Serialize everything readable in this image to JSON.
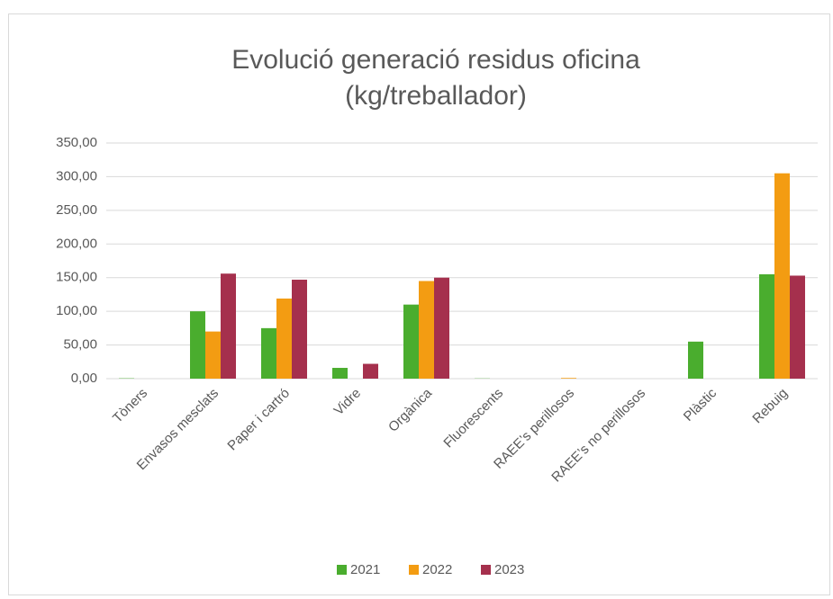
{
  "chart_data": {
    "type": "bar",
    "title": [
      "Evolució generació residus oficina",
      "(kg/treballador)"
    ],
    "categories": [
      "Tòners",
      "Envasos mesclats",
      "Paper i cartró",
      "Vidre",
      "Orgànica",
      "Fluorescents",
      "RAEE’s perillosos",
      "RAEE’s no perillosos",
      "Plàstic",
      "Rebuig"
    ],
    "series": [
      {
        "name": "2021",
        "color": "#4aad2e",
        "values": [
          0.5,
          100,
          75,
          16,
          110,
          0.3,
          0,
          0,
          55,
          155
        ]
      },
      {
        "name": "2022",
        "color": "#f39c12",
        "values": [
          0,
          70,
          119,
          0,
          145,
          0,
          1,
          0,
          0,
          305
        ]
      },
      {
        "name": "2023",
        "color": "#a5304d",
        "values": [
          0,
          156,
          147,
          22,
          150,
          0,
          0,
          0,
          0,
          153
        ]
      }
    ],
    "ylim": [
      0,
      350
    ],
    "yticks": [
      {
        "value": 0,
        "label": "0,00"
      },
      {
        "value": 50,
        "label": "50,00"
      },
      {
        "value": 100,
        "label": "100,00"
      },
      {
        "value": 150,
        "label": "150,00"
      },
      {
        "value": 200,
        "label": "200,00"
      },
      {
        "value": 250,
        "label": "250,00"
      },
      {
        "value": 300,
        "label": "300,00"
      },
      {
        "value": 350,
        "label": "350,00"
      }
    ],
    "grid": true,
    "legend": "bottom"
  }
}
